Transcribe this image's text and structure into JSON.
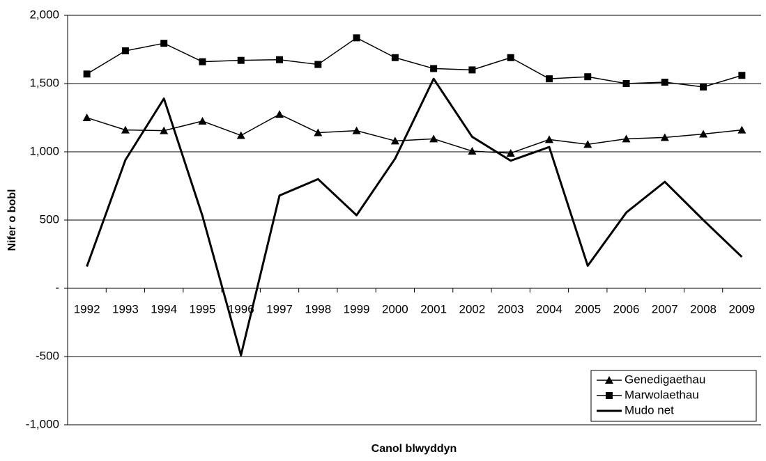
{
  "chart_data": {
    "type": "line",
    "y_label": "Nifer o bobl",
    "x_label": "Canol blwyddyn",
    "categories": [
      "1992",
      "1993",
      "1994",
      "1995",
      "1996",
      "1997",
      "1998",
      "1999",
      "2000",
      "2001",
      "2002",
      "2003",
      "2004",
      "2005",
      "2006",
      "2007",
      "2008",
      "2009"
    ],
    "series": [
      {
        "name": "Genedigaethau",
        "color": "#000000",
        "marker": "triangle",
        "line_width": 1.5,
        "values": [
          1250,
          1160,
          1155,
          1225,
          1120,
          1275,
          1140,
          1155,
          1080,
          1095,
          1005,
          990,
          1090,
          1055,
          1095,
          1105,
          1130,
          1160
        ]
      },
      {
        "name": "Marwolaethau",
        "color": "#000000",
        "marker": "square",
        "line_width": 1.5,
        "values": [
          1570,
          1740,
          1795,
          1660,
          1670,
          1675,
          1640,
          1835,
          1690,
          1610,
          1600,
          1690,
          1535,
          1550,
          1500,
          1510,
          1475,
          1560
        ]
      },
      {
        "name": "Mudo net",
        "color": "#000000",
        "marker": "none",
        "line_width": 3,
        "values": [
          160,
          940,
          1390,
          530,
          -490,
          680,
          800,
          535,
          950,
          1535,
          1110,
          935,
          1035,
          165,
          555,
          780,
          500,
          230
        ]
      }
    ],
    "ylim": [
      -1000,
      2000
    ],
    "yticks": [
      {
        "value": -1000,
        "label": "-1,000"
      },
      -500,
      {
        "value": 0,
        "label": "-"
      },
      500,
      {
        "value": 1000,
        "label": "1,000"
      },
      {
        "value": 1500,
        "label": "1,500"
      },
      {
        "value": 2000,
        "label": "2,000"
      }
    ],
    "grid": true,
    "legend": "lower right"
  }
}
